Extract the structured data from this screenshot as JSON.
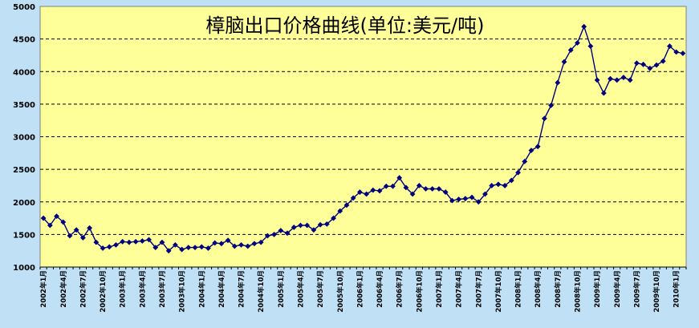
{
  "chart_data": {
    "type": "line",
    "title": "樟脑出口价格曲线(单位:美元/吨)",
    "xlabel": "",
    "ylabel": "",
    "ylim": [
      1000,
      5000
    ],
    "y_ticks": [
      1000,
      1500,
      2000,
      2500,
      3000,
      3500,
      4000,
      4500,
      5000
    ],
    "grid": true,
    "legend": "none",
    "colors": {
      "plot_background": "#ffff99",
      "page_background": "#bfe0f5",
      "line": "#000080",
      "marker": "#000080",
      "grid": "#000000"
    },
    "x_tick_labels": [
      "2002年1月",
      "2002年4月",
      "2002年7月",
      "2002年10月",
      "2003年1月",
      "2003年4月",
      "2003年7月",
      "2003年10月",
      "2004年1月",
      "2004年4月",
      "2004年7月",
      "2004年10月",
      "2005年1月",
      "2005年4月",
      "2005年7月",
      "2005年10月",
      "2006年1月",
      "2006年4月",
      "2006年7月",
      "2006年10月",
      "2007年1月",
      "2007年4月",
      "2007年7月",
      "2007年10月",
      "2008年1月",
      "2008年4月",
      "2008年7月",
      "2008年10月",
      "2009年1月",
      "2009年4月",
      "2009年7月",
      "2009年10月",
      "2010年1月"
    ],
    "series": [
      {
        "values": [
          1750,
          1640,
          1780,
          1690,
          1480,
          1570,
          1450,
          1600,
          1380,
          1290,
          1310,
          1340,
          1390,
          1380,
          1390,
          1400,
          1420,
          1300,
          1380,
          1250,
          1340,
          1270,
          1300,
          1300,
          1310,
          1290,
          1370,
          1360,
          1410,
          1320,
          1340,
          1320,
          1360,
          1380,
          1480,
          1500,
          1560,
          1520,
          1610,
          1640,
          1640,
          1570,
          1650,
          1660,
          1750,
          1860,
          1950,
          2060,
          2150,
          2120,
          2180,
          2170,
          2240,
          2240,
          2370,
          2220,
          2120,
          2250,
          2200,
          2200,
          2200,
          2150,
          2020,
          2040,
          2050,
          2070,
          2000,
          2120,
          2250,
          2270,
          2250,
          2330,
          2450,
          2620,
          2790,
          2850,
          3280,
          3480,
          3830,
          4150,
          4330,
          4440,
          4690,
          4390,
          3870,
          3670,
          3890,
          3870,
          3910,
          3870,
          4130,
          4110,
          4050,
          4100,
          4160,
          4390,
          4300,
          4280
        ]
      }
    ]
  }
}
